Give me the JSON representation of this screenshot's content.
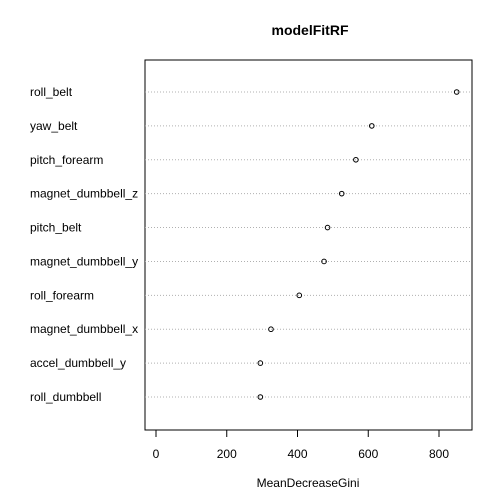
{
  "chart_data": {
    "type": "dotchart",
    "title": "modelFitRF",
    "xlabel": "MeanDecreaseGini",
    "xlim": [
      -30,
      880
    ],
    "xticks": [
      0,
      200,
      400,
      600,
      800
    ],
    "grid": "dotted horizontal per variable",
    "categories": [
      "roll_belt",
      "yaw_belt",
      "pitch_forearm",
      "magnet_dumbbell_z",
      "pitch_belt",
      "magnet_dumbbell_y",
      "roll_forearm",
      "magnet_dumbbell_x",
      "accel_dumbbell_y",
      "roll_dumbbell"
    ],
    "values": [
      850,
      610,
      565,
      525,
      485,
      475,
      405,
      325,
      295,
      295
    ]
  }
}
